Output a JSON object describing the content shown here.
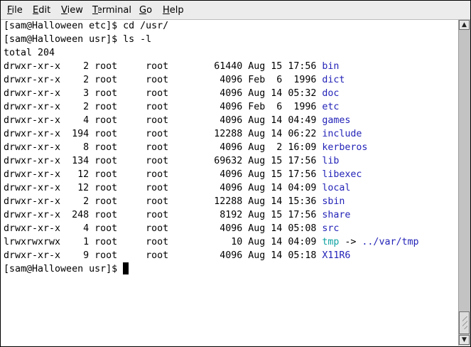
{
  "menu": [
    "File",
    "Edit",
    "View",
    "Terminal",
    "Go",
    "Help"
  ],
  "menu_mnemonics": [
    "F",
    "E",
    "V",
    "T",
    "G",
    "H"
  ],
  "colors": {
    "directory": "#2323b8",
    "symlink": "#10a2a2"
  },
  "terminal": {
    "lines_before": [
      "[sam@Halloween etc]$ cd /usr/",
      "[sam@Halloween usr]$ ls -l",
      "total 204"
    ],
    "listing": [
      {
        "perm": "drwxr-xr-x",
        "links": "2",
        "owner": "root",
        "group": "root",
        "size": "61440",
        "date": "Aug 15 17:56",
        "name": "bin",
        "type": "dir"
      },
      {
        "perm": "drwxr-xr-x",
        "links": "2",
        "owner": "root",
        "group": "root",
        "size": "4096",
        "date": "Feb  6  1996",
        "name": "dict",
        "type": "dir"
      },
      {
        "perm": "drwxr-xr-x",
        "links": "3",
        "owner": "root",
        "group": "root",
        "size": "4096",
        "date": "Aug 14 05:32",
        "name": "doc",
        "type": "dir"
      },
      {
        "perm": "drwxr-xr-x",
        "links": "2",
        "owner": "root",
        "group": "root",
        "size": "4096",
        "date": "Feb  6  1996",
        "name": "etc",
        "type": "dir"
      },
      {
        "perm": "drwxr-xr-x",
        "links": "4",
        "owner": "root",
        "group": "root",
        "size": "4096",
        "date": "Aug 14 04:49",
        "name": "games",
        "type": "dir"
      },
      {
        "perm": "drwxr-xr-x",
        "links": "194",
        "owner": "root",
        "group": "root",
        "size": "12288",
        "date": "Aug 14 06:22",
        "name": "include",
        "type": "dir"
      },
      {
        "perm": "drwxr-xr-x",
        "links": "8",
        "owner": "root",
        "group": "root",
        "size": "4096",
        "date": "Aug  2 16:09",
        "name": "kerberos",
        "type": "dir"
      },
      {
        "perm": "drwxr-xr-x",
        "links": "134",
        "owner": "root",
        "group": "root",
        "size": "69632",
        "date": "Aug 15 17:56",
        "name": "lib",
        "type": "dir"
      },
      {
        "perm": "drwxr-xr-x",
        "links": "12",
        "owner": "root",
        "group": "root",
        "size": "4096",
        "date": "Aug 15 17:56",
        "name": "libexec",
        "type": "dir"
      },
      {
        "perm": "drwxr-xr-x",
        "links": "12",
        "owner": "root",
        "group": "root",
        "size": "4096",
        "date": "Aug 14 04:09",
        "name": "local",
        "type": "dir"
      },
      {
        "perm": "drwxr-xr-x",
        "links": "2",
        "owner": "root",
        "group": "root",
        "size": "12288",
        "date": "Aug 14 15:36",
        "name": "sbin",
        "type": "dir"
      },
      {
        "perm": "drwxr-xr-x",
        "links": "248",
        "owner": "root",
        "group": "root",
        "size": "8192",
        "date": "Aug 15 17:56",
        "name": "share",
        "type": "dir"
      },
      {
        "perm": "drwxr-xr-x",
        "links": "4",
        "owner": "root",
        "group": "root",
        "size": "4096",
        "date": "Aug 14 05:08",
        "name": "src",
        "type": "dir"
      },
      {
        "perm": "lrwxrwxrwx",
        "links": "1",
        "owner": "root",
        "group": "root",
        "size": "10",
        "date": "Aug 14 04:09",
        "name": "tmp",
        "type": "link",
        "target": "../var/tmp"
      },
      {
        "perm": "drwxr-xr-x",
        "links": "9",
        "owner": "root",
        "group": "root",
        "size": "4096",
        "date": "Aug 14 05:18",
        "name": "X11R6",
        "type": "dir"
      }
    ],
    "arrow": "->",
    "prompt": "[sam@Halloween usr]$ "
  },
  "scrollbar": {
    "position_fraction": 1.0
  }
}
